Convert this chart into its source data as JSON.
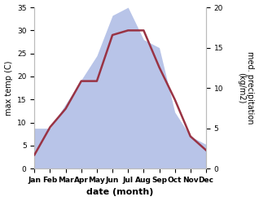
{
  "months": [
    "Jan",
    "Feb",
    "Mar",
    "Apr",
    "May",
    "Jun",
    "Jul",
    "Aug",
    "Sep",
    "Oct",
    "Nov",
    "Dec"
  ],
  "temperature": [
    3,
    9,
    13,
    19,
    19,
    29,
    30,
    30,
    22,
    15,
    7,
    4
  ],
  "precipitation": [
    5,
    5,
    8,
    11,
    14,
    19,
    20,
    16,
    15,
    7,
    4,
    3
  ],
  "temp_color": "#993344",
  "precip_color_fill": "#b8c4e8",
  "left_ylabel": "max temp (C)",
  "right_ylabel": "med. precipitation\n(kg/m2)",
  "xlabel": "date (month)",
  "left_ylim": [
    0,
    35
  ],
  "right_ylim": [
    0,
    20
  ],
  "left_yticks": [
    0,
    5,
    10,
    15,
    20,
    25,
    30,
    35
  ],
  "right_yticks": [
    0,
    5,
    10,
    15,
    20
  ],
  "temp_linewidth": 1.8,
  "background_color": "#ffffff",
  "spine_color": "#bbbbbb",
  "tick_fontsize": 6.5,
  "xlabel_fontsize": 8,
  "ylabel_fontsize": 7
}
